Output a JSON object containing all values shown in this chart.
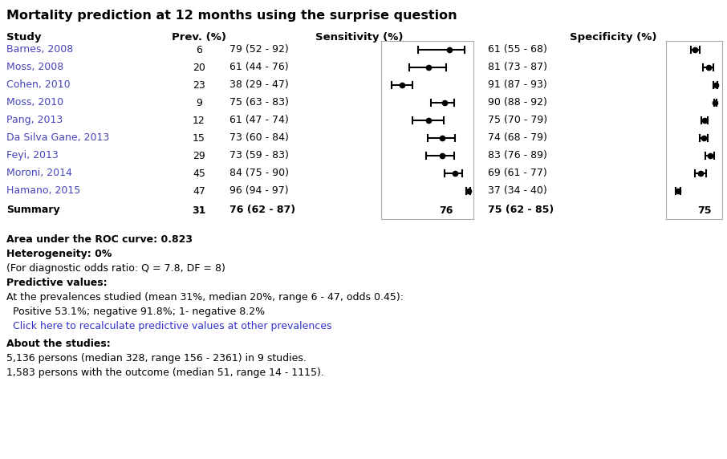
{
  "title": "Mortality prediction at 12 months using the surprise question",
  "studies": [
    {
      "name": "Barnes, 2008",
      "prev": 6,
      "sens": 79,
      "sens_lo": 52,
      "sens_hi": 92,
      "spec": 61,
      "spec_lo": 55,
      "spec_hi": 68
    },
    {
      "name": "Moss, 2008",
      "prev": 20,
      "sens": 61,
      "sens_lo": 44,
      "sens_hi": 76,
      "spec": 81,
      "spec_lo": 73,
      "spec_hi": 87
    },
    {
      "name": "Cohen, 2010",
      "prev": 23,
      "sens": 38,
      "sens_lo": 29,
      "sens_hi": 47,
      "spec": 91,
      "spec_lo": 87,
      "spec_hi": 93
    },
    {
      "name": "Moss, 2010",
      "prev": 9,
      "sens": 75,
      "sens_lo": 63,
      "sens_hi": 83,
      "spec": 90,
      "spec_lo": 88,
      "spec_hi": 92
    },
    {
      "name": "Pang, 2013",
      "prev": 12,
      "sens": 61,
      "sens_lo": 47,
      "sens_hi": 74,
      "spec": 75,
      "spec_lo": 70,
      "spec_hi": 79
    },
    {
      "name": "Da Silva Gane, 2013",
      "prev": 15,
      "sens": 73,
      "sens_lo": 60,
      "sens_hi": 84,
      "spec": 74,
      "spec_lo": 68,
      "spec_hi": 79
    },
    {
      "name": "Feyi, 2013",
      "prev": 29,
      "sens": 73,
      "sens_lo": 59,
      "sens_hi": 83,
      "spec": 83,
      "spec_lo": 76,
      "spec_hi": 89
    },
    {
      "name": "Moroni, 2014",
      "prev": 45,
      "sens": 84,
      "sens_lo": 75,
      "sens_hi": 90,
      "spec": 69,
      "spec_lo": 61,
      "spec_hi": 77
    },
    {
      "name": "Hamano, 2015",
      "prev": 47,
      "sens": 96,
      "sens_lo": 94,
      "sens_hi": 97,
      "spec": 37,
      "spec_lo": 34,
      "spec_hi": 40
    }
  ],
  "summary": {
    "prev": 31,
    "sens": 76,
    "sens_lo": 62,
    "sens_hi": 87,
    "spec": 75,
    "spec_lo": 62,
    "spec_hi": 85
  },
  "study_color": "#4444bb",
  "black": "#000000",
  "white": "#ffffff",
  "gray_line": "#aaaaaa",
  "link_color": "#3333cc",
  "area_text": "Area under the ROC curve: 0.823",
  "heterogeneity_bold": "Heterogeneity: 0%",
  "heterogeneity_normal": "(For diagnostic odds ratio: Q = 7.8, DF = 8)",
  "predictive_bold": "Predictive values:",
  "predictive_normal": "At the prevalences studied (mean 31%, median 20%, range 6 - 47, odds 0.45):",
  "predictive_sub": "  Positive 53.1%; negative 91.8%; 1- negative 8.2%",
  "predictive_link": "  Click here to recalculate predictive values at other prevalences",
  "about_bold": "About the studies:",
  "about_line1": "5,136 persons (median 328, range 156 - 2361) in 9 studies.",
  "about_line2": "1,583 persons with the outcome (median 51, range 14 - 1115).",
  "sens_plot_min": 20,
  "sens_plot_max": 100,
  "spec_plot_min": 20,
  "spec_plot_max": 100
}
